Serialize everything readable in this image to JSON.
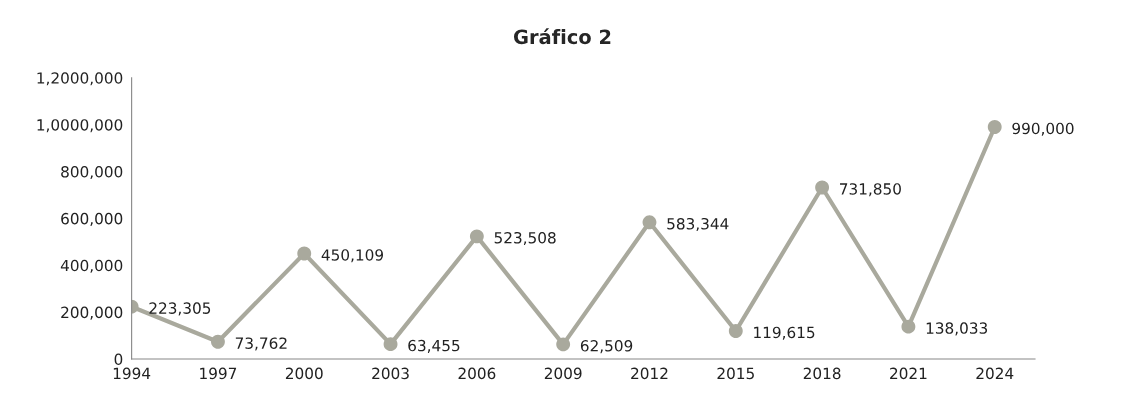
{
  "chart_data": {
    "type": "line",
    "title": "Gráfico 2",
    "x": [
      1994,
      1997,
      2000,
      2003,
      2006,
      2009,
      2012,
      2015,
      2018,
      2021,
      2024
    ],
    "series": [
      {
        "color": "#a9a99d",
        "values": [
          223305,
          73762,
          450109,
          63455,
          523508,
          62509,
          583344,
          119615,
          731850,
          138033,
          990000
        ],
        "value_labels": [
          "223,305",
          "73,762",
          "450,109",
          "63,455",
          "523,508",
          "62,509",
          "583,344",
          "119,615",
          "731,850",
          "138,033",
          "990,000"
        ]
      }
    ],
    "xlim": [
      1994,
      2025.4
    ],
    "xticks": [
      1994,
      1997,
      2000,
      2003,
      2006,
      2009,
      2012,
      2015,
      2018,
      2021,
      2024
    ],
    "ylim": [
      0,
      1200000
    ],
    "yticks": [
      {
        "value": 0,
        "label": "0"
      },
      {
        "value": 200000,
        "label": "200,000"
      },
      {
        "value": 400000,
        "label": "400,000"
      },
      {
        "value": 600000,
        "label": "600,000"
      },
      {
        "value": 800000,
        "label": "800,000"
      },
      {
        "value": 1000000,
        "label": "1,0000,000"
      },
      {
        "value": 1200000,
        "label": "1,2000,000"
      }
    ],
    "marker": "circle",
    "line_style": "solid",
    "grid": false,
    "legend": false
  }
}
